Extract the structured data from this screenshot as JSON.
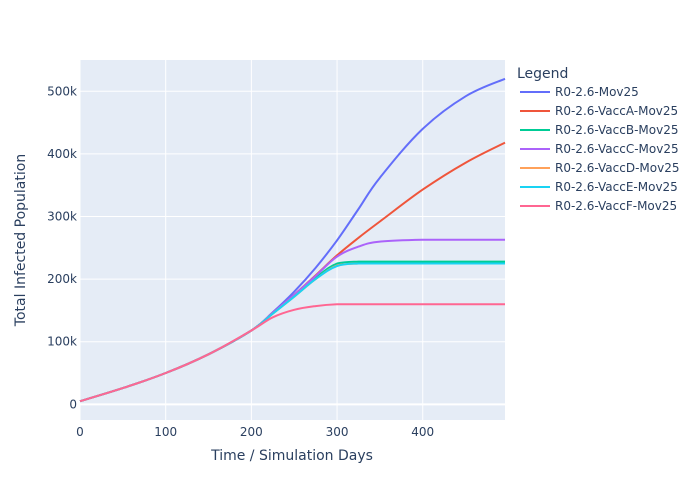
{
  "chart_data": {
    "type": "line",
    "title": "",
    "xlabel": "Time / Simulation Days",
    "ylabel": "Total Infected Population",
    "xlim": [
      0,
      496
    ],
    "ylim": [
      -25000,
      550000
    ],
    "x_ticks": [
      0,
      100,
      200,
      300,
      400
    ],
    "x_tick_labels": [
      "0",
      "100",
      "200",
      "300",
      "400"
    ],
    "y_ticks": [
      0,
      100000,
      200000,
      300000,
      400000,
      500000
    ],
    "y_tick_labels": [
      "0",
      "100k",
      "200k",
      "300k",
      "400k",
      "500k"
    ],
    "grid": true,
    "legend_title": "Legend",
    "legend_position": "right",
    "x": [
      0,
      50,
      100,
      150,
      200,
      225,
      250,
      275,
      300,
      325,
      350,
      400,
      450,
      496
    ],
    "series": [
      {
        "name": "R0-2.6-Mov25",
        "color": "#636efa",
        "values": [
          5000,
          26000,
          50000,
          80000,
          118000,
          147000,
          180000,
          218000,
          262000,
          312000,
          362000,
          440000,
          492000,
          520000
        ]
      },
      {
        "name": "R0-2.6-VaccA-Mov25",
        "color": "#ef553b",
        "values": [
          5000,
          26000,
          50000,
          80000,
          118000,
          146000,
          175000,
          206000,
          238000,
          266000,
          292000,
          343000,
          386000,
          418000
        ]
      },
      {
        "name": "R0-2.6-VaccB-Mov25",
        "color": "#00cc96",
        "values": [
          5000,
          26000,
          50000,
          80000,
          118000,
          145000,
          173000,
          202000,
          225000,
          228000,
          228000,
          228000,
          228000,
          228000
        ]
      },
      {
        "name": "R0-2.6-VaccC-Mov25",
        "color": "#ab63fa",
        "values": [
          5000,
          26000,
          50000,
          80000,
          118000,
          146000,
          175000,
          205000,
          236000,
          252000,
          260000,
          263000,
          263000,
          263000
        ]
      },
      {
        "name": "R0-2.6-VaccD-Mov25",
        "color": "#ffa15a",
        "values": [
          5000,
          26000,
          50000,
          80000,
          118000,
          145000,
          172000,
          200000,
          222000,
          225000,
          225000,
          225000,
          225000,
          225000
        ]
      },
      {
        "name": "R0-2.6-VaccE-Mov25",
        "color": "#19d3f3",
        "values": [
          5000,
          26000,
          50000,
          80000,
          118000,
          145000,
          172000,
          200000,
          221000,
          225000,
          225000,
          225000,
          225000,
          225000
        ]
      },
      {
        "name": "R0-2.6-VaccF-Mov25",
        "color": "#ff6692",
        "values": [
          5000,
          26000,
          50000,
          80000,
          118000,
          139000,
          151000,
          157000,
          160000,
          160000,
          160000,
          160000,
          160000,
          160000
        ]
      }
    ]
  }
}
